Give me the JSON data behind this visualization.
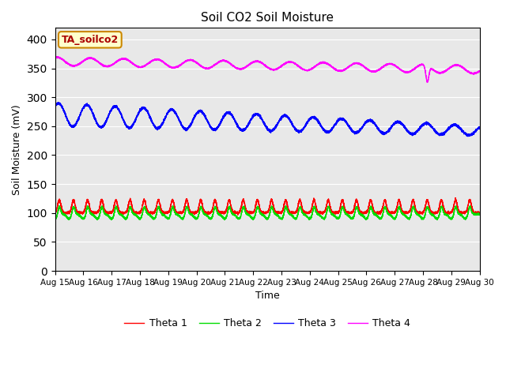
{
  "title": "Soil CO2 Soil Moisture",
  "xlabel": "Time",
  "ylabel": "Soil Moisture (mV)",
  "annotation": "TA_soilco2",
  "ylim": [
    0,
    420
  ],
  "yticks": [
    0,
    50,
    100,
    150,
    200,
    250,
    300,
    350,
    400
  ],
  "x_labels": [
    "Aug 15",
    "Aug 16",
    "Aug 17",
    "Aug 18",
    "Aug 19",
    "Aug 20",
    "Aug 21",
    "Aug 22",
    "Aug 23",
    "Aug 24",
    "Aug 25",
    "Aug 26",
    "Aug 27",
    "Aug 28",
    "Aug 29",
    "Aug 30"
  ],
  "colors": {
    "theta1": "#ff0000",
    "theta2": "#00dd00",
    "theta3": "#0000ff",
    "theta4": "#ff00ff"
  },
  "legend_labels": [
    "Theta 1",
    "Theta 2",
    "Theta 3",
    "Theta 4"
  ],
  "bg_color": "#e8e8e8",
  "annotation_bg": "#ffffcc",
  "annotation_edge": "#cc8800",
  "annotation_text_color": "#aa0000",
  "n_days": 15,
  "pts_per_day": 480,
  "linewidth": 1.0
}
